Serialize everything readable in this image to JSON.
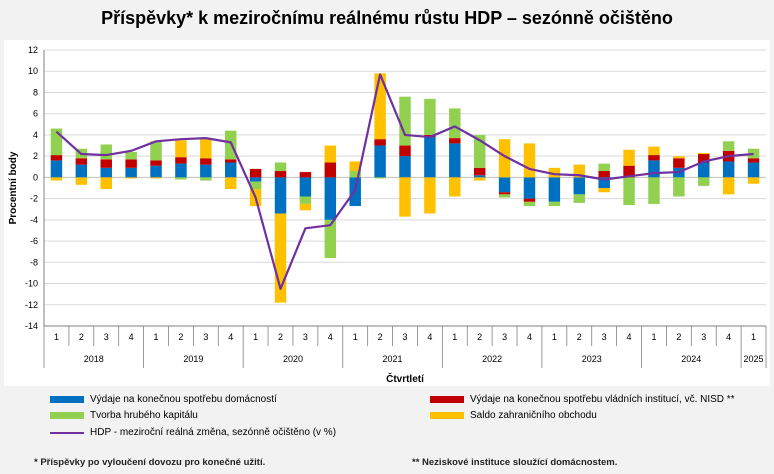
{
  "chart_data": {
    "type": "bar",
    "title": "Příspěvky* k meziročnímu reálnému růstu HDP – sezónně očištěno",
    "ylabel": "Procentní body",
    "xlabel": "Čtvrtletí",
    "ylim": [
      -14,
      12
    ],
    "ytick_step": 2,
    "grid": true,
    "legend_position": "bottom",
    "categories": [
      "1",
      "2",
      "3",
      "4",
      "1",
      "2",
      "3",
      "4",
      "1",
      "2",
      "3",
      "4",
      "1",
      "2",
      "3",
      "4",
      "1",
      "2",
      "3",
      "4",
      "1",
      "2",
      "3",
      "4",
      "1",
      "2",
      "3",
      "4",
      "1"
    ],
    "year_groups": [
      {
        "label": "2018",
        "span": 4
      },
      {
        "label": "2019",
        "span": 4
      },
      {
        "label": "2020",
        "span": 4
      },
      {
        "label": "2021",
        "span": 4
      },
      {
        "label": "2022",
        "span": 4
      },
      {
        "label": "2023",
        "span": 4
      },
      {
        "label": "2024",
        "span": 4
      },
      {
        "label": "2025",
        "span": 1
      }
    ],
    "series": [
      {
        "name": "Výdaje na konečnou spotřebu domácností",
        "type": "bar",
        "color": "#0070c0",
        "values": [
          1.6,
          1.2,
          0.9,
          0.9,
          1.1,
          1.3,
          1.2,
          1.4,
          -0.4,
          -3.4,
          -1.8,
          -4.0,
          -2.7,
          3.0,
          2.0,
          3.8,
          3.2,
          0.2,
          -1.4,
          -2.0,
          -2.3,
          -1.6,
          -1.0,
          0.0,
          1.6,
          0.9,
          1.4,
          1.5,
          1.4
        ]
      },
      {
        "name": "Výdaje na konečnou spotřebu vládních institucí, vč. NISD **",
        "type": "bar",
        "color": "#c00000",
        "values": [
          0.5,
          0.6,
          0.8,
          0.8,
          0.5,
          0.6,
          0.6,
          0.3,
          0.8,
          0.6,
          0.5,
          1.4,
          0.0,
          0.6,
          1.0,
          0.2,
          0.5,
          0.7,
          -0.2,
          -0.3,
          0.0,
          0.0,
          0.6,
          1.1,
          0.5,
          0.9,
          0.8,
          1.0,
          0.4
        ]
      },
      {
        "name": "Tvorba hrubého kapitálu",
        "type": "bar",
        "color": "#92d050",
        "values": [
          2.5,
          0.9,
          1.4,
          0.7,
          1.8,
          -0.2,
          -0.3,
          2.7,
          -0.7,
          0.8,
          -0.7,
          -3.6,
          0.6,
          -0.1,
          4.6,
          3.4,
          2.8,
          3.1,
          -0.3,
          -0.4,
          -0.4,
          -0.8,
          0.7,
          -2.6,
          -2.5,
          -1.8,
          -0.8,
          0.9,
          0.9
        ]
      },
      {
        "name": "Saldo zahraničního obchodu",
        "type": "bar",
        "color": "#ffc000",
        "values": [
          -0.3,
          -0.7,
          -1.1,
          -0.1,
          -0.1,
          1.6,
          1.8,
          -1.1,
          -1.6,
          -8.4,
          -0.6,
          1.6,
          0.9,
          6.2,
          -3.7,
          -3.4,
          -1.8,
          -0.3,
          3.6,
          3.2,
          0.9,
          1.2,
          -0.4,
          1.5,
          0.8,
          0.2,
          0.1,
          -1.6,
          -0.6
        ]
      },
      {
        "name": "HDP - meziroční reálná změna, sezónně očištěno (v %)",
        "type": "line",
        "color": "#7030a0",
        "values": [
          4.3,
          2.2,
          2.1,
          2.5,
          3.4,
          3.6,
          3.7,
          3.3,
          -1.9,
          -10.5,
          -4.8,
          -4.5,
          -1.2,
          9.7,
          4.0,
          3.8,
          4.8,
          3.5,
          2.0,
          0.8,
          0.3,
          0.2,
          -0.2,
          0.1,
          0.4,
          0.5,
          1.5,
          2.0,
          2.2
        ]
      }
    ]
  },
  "footnotes": {
    "left": "* Příspěvky po vyloučení dovozu pro konečné užití.",
    "right": "** Neziskové instituce sloužící domácnostem."
  }
}
